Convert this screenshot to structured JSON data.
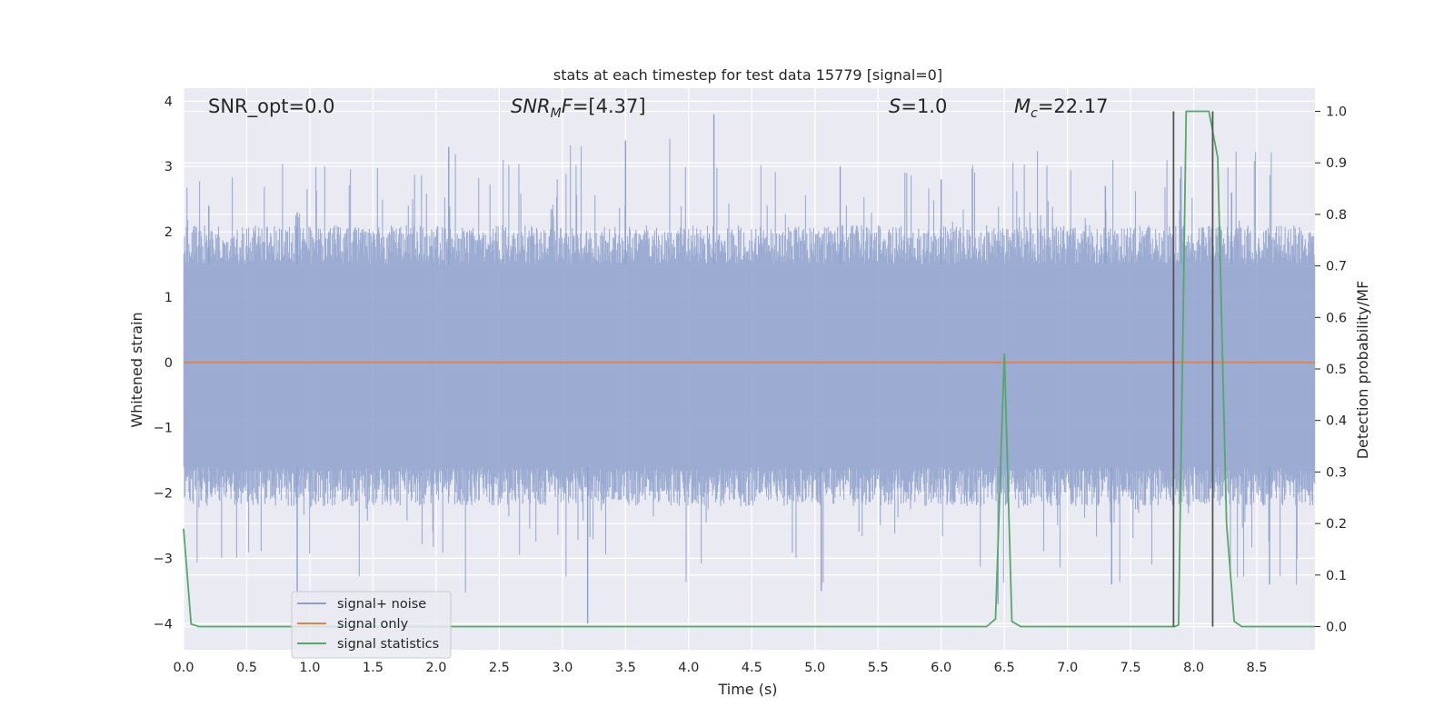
{
  "chart_data": {
    "type": "line",
    "title": "stats at each timestep for test data 15779 [signal=0]",
    "xlabel": "Time (s)",
    "ylabel": "Whitened strain",
    "ylabel_right": "Detection probability/MF",
    "xlim": [
      0.0,
      8.96
    ],
    "ylim": [
      -4.4,
      4.2
    ],
    "ylim_right": [
      -0.045,
      1.045
    ],
    "xticks": [
      "0.0",
      "0.5",
      "1.0",
      "1.5",
      "2.0",
      "2.5",
      "3.0",
      "3.5",
      "4.0",
      "4.5",
      "5.0",
      "5.5",
      "6.0",
      "6.5",
      "7.0",
      "7.5",
      "8.0",
      "8.5"
    ],
    "xtick_values": [
      0.0,
      0.5,
      1.0,
      1.5,
      2.0,
      2.5,
      3.0,
      3.5,
      4.0,
      4.5,
      5.0,
      5.5,
      6.0,
      6.5,
      7.0,
      7.5,
      8.0,
      8.5
    ],
    "yticks": [
      "4",
      "3",
      "2",
      "1",
      "0",
      "−1",
      "−2",
      "−3",
      "−4"
    ],
    "ytick_values": [
      4,
      3,
      2,
      1,
      0,
      -1,
      -2,
      -3,
      -4
    ],
    "yticks_right": [
      "1.0",
      "0.9",
      "0.8",
      "0.7",
      "0.6",
      "0.5",
      "0.4",
      "0.3",
      "0.2",
      "0.1",
      "0.0"
    ],
    "ytick_right_values": [
      1.0,
      0.9,
      0.8,
      0.7,
      0.6,
      0.5,
      0.4,
      0.3,
      0.2,
      0.1,
      0.0
    ],
    "grid": true,
    "legend_position": "lower-left",
    "annotations": {
      "snr_opt": "SNR_opt=0.0",
      "snr_mf_a": "SNR",
      "snr_mf_sub": "M",
      "snr_mf_b": "F",
      "snr_mf_c": "=[4.37]",
      "s_a": "S",
      "s_b": "=1.0",
      "mc_a": "M",
      "mc_sub": "c",
      "mc_b": "=22.17"
    },
    "series": [
      {
        "name": "signal+ noise",
        "color": "#8da0cb",
        "axis": "left",
        "description": "whitened strain noise, fluctuating roughly between -4 and 4",
        "envelope_upper": 1.5,
        "envelope_lower": -1.6,
        "peaks": [
          [
            0.2,
            2.4
          ],
          [
            0.9,
            2.3
          ],
          [
            2.1,
            3.3
          ],
          [
            3.5,
            3.4
          ],
          [
            4.2,
            3.8
          ],
          [
            5.2,
            3.0
          ],
          [
            6.0,
            2.8
          ],
          [
            7.3,
            2.7
          ],
          [
            7.9,
            3.0
          ],
          [
            8.3,
            2.6
          ],
          [
            0.9,
            -3.6
          ],
          [
            3.2,
            -4.0
          ],
          [
            5.05,
            -3.5
          ],
          [
            6.45,
            -3.7
          ],
          [
            7.35,
            -3.4
          ],
          [
            8.6,
            -3.4
          ]
        ]
      },
      {
        "name": "signal only",
        "color": "#dd8452",
        "axis": "left",
        "x": [
          0.0,
          8.96
        ],
        "y": [
          0.0,
          0.0
        ]
      },
      {
        "name": "signal statistics",
        "color": "#55a868",
        "axis": "right",
        "x": [
          0.0,
          0.06,
          0.12,
          0.5,
          1.0,
          6.36,
          6.43,
          6.5,
          6.56,
          6.63,
          7.0,
          7.85,
          7.88,
          7.94,
          8.0,
          8.12,
          8.19,
          8.26,
          8.32,
          8.38,
          8.96
        ],
        "y": [
          0.19,
          0.005,
          0.0,
          0.0,
          0.0,
          0.0,
          0.015,
          0.53,
          0.01,
          0.0,
          0.0,
          0.0,
          0.003,
          1.0,
          1.0,
          1.0,
          0.91,
          0.2,
          0.01,
          0.0,
          0.0
        ]
      }
    ],
    "vertical_markers": {
      "color": "#555555",
      "x": [
        7.84,
        8.15
      ]
    }
  }
}
